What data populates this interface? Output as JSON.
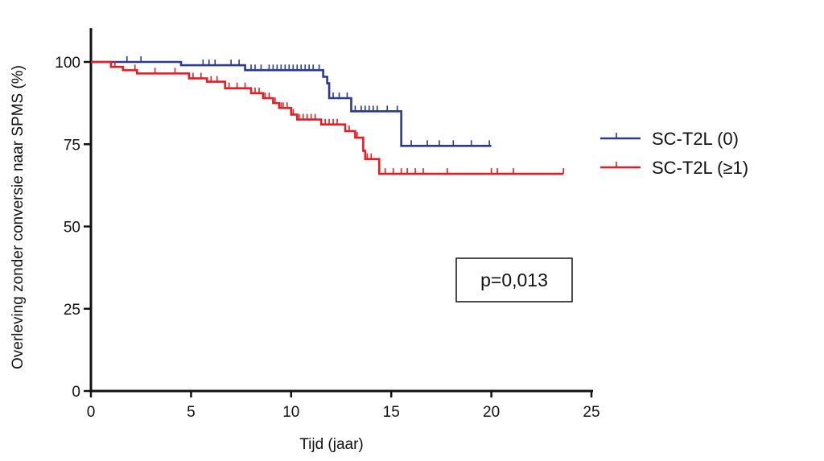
{
  "chart_data": {
    "type": "line",
    "step": true,
    "xlabel": "Tijd (jaar)",
    "ylabel": "Overleving zonder conversie naar SPMS (%)",
    "xlim": [
      0,
      25
    ],
    "ylim": [
      0,
      110
    ],
    "xticks": [
      "0",
      "5",
      "10",
      "15",
      "20",
      "25"
    ],
    "yticks": [
      "0",
      "25",
      "50",
      "75",
      "100"
    ],
    "annotation": "p=0,013",
    "legend_position": "right",
    "series": [
      {
        "name": "SC-T2L (0)",
        "color": "#2b3990",
        "steps": [
          [
            0,
            100
          ],
          [
            4.5,
            99
          ],
          [
            7.7,
            97.5
          ],
          [
            11.6,
            95.5
          ],
          [
            11.8,
            93.5
          ],
          [
            11.9,
            89
          ],
          [
            13.0,
            85
          ],
          [
            15.5,
            74.5
          ]
        ],
        "end": 20,
        "censored": [
          [
            1.8,
            100
          ],
          [
            2.5,
            100
          ],
          [
            5.6,
            99
          ],
          [
            5.9,
            99
          ],
          [
            6.2,
            99
          ],
          [
            7.0,
            99
          ],
          [
            7.4,
            99
          ],
          [
            8.0,
            97.5
          ],
          [
            8.2,
            97.5
          ],
          [
            8.5,
            97.5
          ],
          [
            8.9,
            97.5
          ],
          [
            9.1,
            97.5
          ],
          [
            9.3,
            97.5
          ],
          [
            9.5,
            97.5
          ],
          [
            9.7,
            97.5
          ],
          [
            9.9,
            97.5
          ],
          [
            10.1,
            97.5
          ],
          [
            10.3,
            97.5
          ],
          [
            10.5,
            97.5
          ],
          [
            10.7,
            97.5
          ],
          [
            10.9,
            97.5
          ],
          [
            11.1,
            97.5
          ],
          [
            11.4,
            97.5
          ],
          [
            12.1,
            89
          ],
          [
            12.4,
            89
          ],
          [
            12.8,
            89
          ],
          [
            13.2,
            85
          ],
          [
            13.5,
            85
          ],
          [
            13.7,
            85
          ],
          [
            13.9,
            85
          ],
          [
            14.1,
            85
          ],
          [
            14.3,
            85
          ],
          [
            14.8,
            85
          ],
          [
            15.3,
            85
          ],
          [
            16.0,
            74.5
          ],
          [
            16.8,
            74.5
          ],
          [
            17.4,
            74.5
          ],
          [
            18.1,
            74.5
          ],
          [
            19.0,
            74.5
          ],
          [
            19.9,
            74.5
          ]
        ]
      },
      {
        "name": "SC-T2L (≥1)",
        "color": "#e31e24",
        "steps": [
          [
            0,
            100
          ],
          [
            1.0,
            98.5
          ],
          [
            1.6,
            97.5
          ],
          [
            2.3,
            96.5
          ],
          [
            4.9,
            95
          ],
          [
            5.8,
            94
          ],
          [
            6.7,
            92
          ],
          [
            8.0,
            90.5
          ],
          [
            8.6,
            89
          ],
          [
            9.1,
            87.5
          ],
          [
            9.4,
            86
          ],
          [
            10.0,
            84
          ],
          [
            10.3,
            82.5
          ],
          [
            11.5,
            81
          ],
          [
            12.7,
            79
          ],
          [
            13.2,
            77
          ],
          [
            13.6,
            73
          ],
          [
            13.7,
            70.5
          ],
          [
            14.4,
            66
          ]
        ],
        "end": 23.6,
        "censored": [
          [
            1.2,
            98.5
          ],
          [
            2.2,
            97.5
          ],
          [
            3.2,
            96.5
          ],
          [
            4.2,
            96.5
          ],
          [
            5.1,
            95
          ],
          [
            5.5,
            95
          ],
          [
            6.0,
            94
          ],
          [
            6.3,
            94
          ],
          [
            6.9,
            92
          ],
          [
            7.3,
            92
          ],
          [
            7.7,
            92
          ],
          [
            8.2,
            90.5
          ],
          [
            8.4,
            90.5
          ],
          [
            8.7,
            89
          ],
          [
            8.9,
            89
          ],
          [
            9.2,
            87.5
          ],
          [
            9.5,
            86
          ],
          [
            9.6,
            86
          ],
          [
            9.8,
            86
          ],
          [
            10.1,
            84
          ],
          [
            10.4,
            82.5
          ],
          [
            10.6,
            82.5
          ],
          [
            10.8,
            82.5
          ],
          [
            11.0,
            82.5
          ],
          [
            11.2,
            82.5
          ],
          [
            11.7,
            81
          ],
          [
            11.9,
            81
          ],
          [
            12.1,
            81
          ],
          [
            12.3,
            81
          ],
          [
            12.9,
            79
          ],
          [
            13.3,
            77
          ],
          [
            13.8,
            70.5
          ],
          [
            14.0,
            70.5
          ],
          [
            14.7,
            66
          ],
          [
            15.1,
            66
          ],
          [
            15.5,
            66
          ],
          [
            15.8,
            66
          ],
          [
            16.2,
            66
          ],
          [
            16.6,
            66
          ],
          [
            17.8,
            66
          ],
          [
            20.0,
            66
          ],
          [
            20.3,
            66
          ],
          [
            21.1,
            66
          ],
          [
            23.6,
            66
          ]
        ]
      }
    ]
  }
}
